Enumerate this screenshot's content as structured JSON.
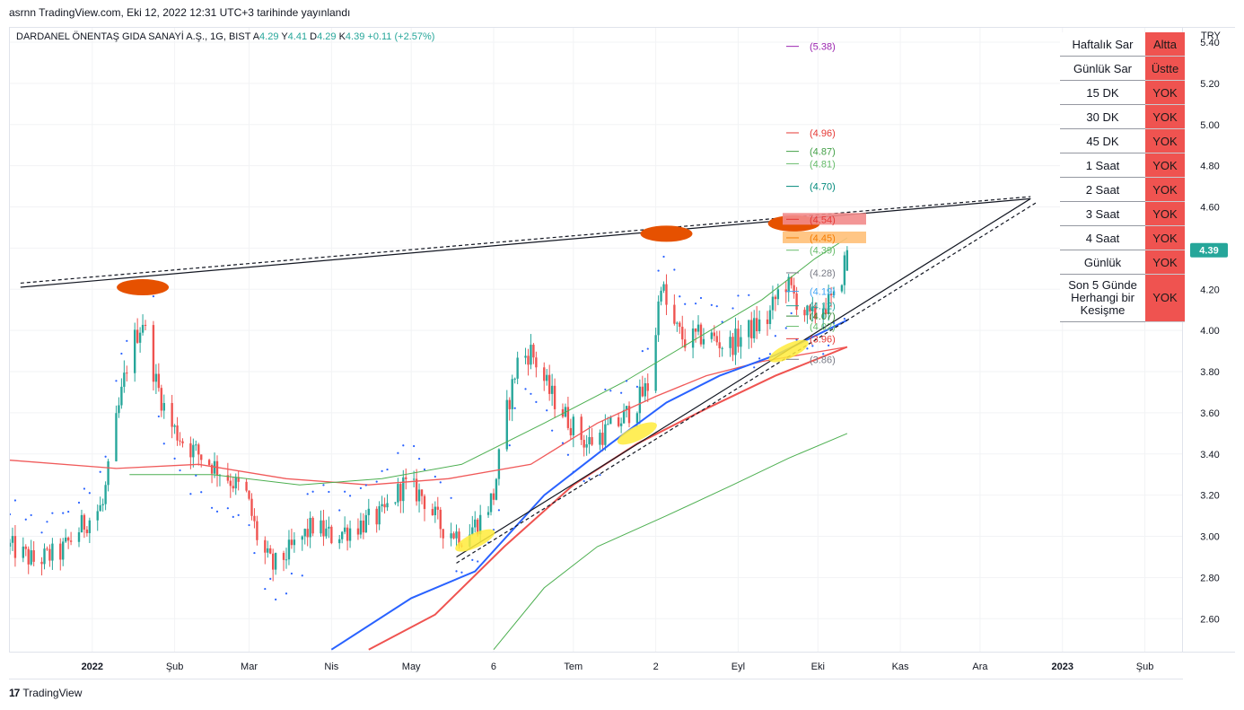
{
  "publish_line": "asrnn TradingView.com, Eki 12, 2022 12:31 UTC+3 tarihinde yayınlandı",
  "symbol": {
    "name": "DARDANEL ÖNENTAŞ GIDA SANAYİ A.Ş., 1G, BIST",
    "open_label": "A",
    "open": "4.29",
    "high_label": "Y",
    "high": "4.41",
    "low_label": "D",
    "low": "4.29",
    "close_label": "K",
    "close": "4.39",
    "change": "+0.11 (+2.57%)"
  },
  "currency": "TRY",
  "price_tag": "4.39",
  "footer": {
    "logo_mark": "17",
    "brand": "TradingView"
  },
  "status_table": [
    {
      "label": "Haftalık Sar",
      "status": "Altta"
    },
    {
      "label": "Günlük Sar",
      "status": "Üstte"
    },
    {
      "label": "15 DK",
      "status": "YOK"
    },
    {
      "label": "30 DK",
      "status": "YOK"
    },
    {
      "label": "45 DK",
      "status": "YOK"
    },
    {
      "label": "1 Saat",
      "status": "YOK"
    },
    {
      "label": "2 Saat",
      "status": "YOK"
    },
    {
      "label": "3 Saat",
      "status": "YOK"
    },
    {
      "label": "4 Saat",
      "status": "YOK"
    },
    {
      "label": "Günlük",
      "status": "YOK"
    },
    {
      "label": "Son 5 Günde Herhangi bir Kesişme",
      "status": "YOK"
    }
  ],
  "colors": {
    "up": "#26a69a",
    "down": "#ef5350",
    "ema_blue": "#2962ff",
    "ema_red": "#ef5350",
    "ma_green": "#4caf50",
    "ma_200": "#f05a5a",
    "sar": "#2962ff",
    "top_marker": "#e65100",
    "bottom_marker": "#ffeb3b",
    "table_status_bg": "#ef5350"
  },
  "chart_data": {
    "type": "candlestick",
    "ylim": [
      2.44,
      5.47
    ],
    "y_ticks": [
      "5.40",
      "5.20",
      "5.00",
      "4.80",
      "4.60",
      "4.40",
      "4.20",
      "4.00",
      "3.80",
      "3.60",
      "3.40",
      "3.20",
      "3.00",
      "2.80",
      "2.60"
    ],
    "x_ticks": [
      "2022",
      "Şub",
      "Mar",
      "Nis",
      "May",
      "6",
      "Tem",
      "2",
      "Eyl",
      "Eki",
      "Kas",
      "Ara",
      "2023",
      "Şub"
    ],
    "x_tick_dates": [
      "2022-01-01",
      "2022-02-01",
      "2022-03-01",
      "2022-04-01",
      "2022-05-01",
      "2022-06-01",
      "2022-07-01",
      "2022-08-01",
      "2022-09-01",
      "2022-10-01",
      "2022-11-01",
      "2022-12-01",
      "2023-01-01",
      "2023-02-01"
    ],
    "x_range": [
      "2021-12-01",
      "2023-02-15"
    ],
    "bold_x_ticks": [
      "2022",
      "2023"
    ],
    "last_date": "2022-10-12",
    "price_path": [
      [
        "2021-12-01",
        2.95
      ],
      [
        "2021-12-10",
        2.88
      ],
      [
        "2021-12-20",
        2.92
      ],
      [
        "2021-12-28",
        3.05
      ],
      [
        "2022-01-05",
        3.15
      ],
      [
        "2022-01-10",
        3.55
      ],
      [
        "2022-01-15",
        3.9
      ],
      [
        "2022-01-20",
        4.05
      ],
      [
        "2022-01-25",
        3.75
      ],
      [
        "2022-01-30",
        3.55
      ],
      [
        "2022-02-05",
        3.45
      ],
      [
        "2022-02-12",
        3.38
      ],
      [
        "2022-02-20",
        3.3
      ],
      [
        "2022-02-28",
        3.2
      ],
      [
        "2022-03-05",
        2.95
      ],
      [
        "2022-03-10",
        2.85
      ],
      [
        "2022-03-18",
        2.95
      ],
      [
        "2022-03-25",
        3.05
      ],
      [
        "2022-04-01",
        3.0
      ],
      [
        "2022-04-10",
        3.05
      ],
      [
        "2022-04-20",
        3.1
      ],
      [
        "2022-04-28",
        3.25
      ],
      [
        "2022-05-05",
        3.2
      ],
      [
        "2022-05-12",
        3.05
      ],
      [
        "2022-05-20",
        3.0
      ],
      [
        "2022-05-27",
        3.08
      ],
      [
        "2022-06-01",
        3.2
      ],
      [
        "2022-06-05",
        3.55
      ],
      [
        "2022-06-10",
        3.85
      ],
      [
        "2022-06-15",
        3.9
      ],
      [
        "2022-06-22",
        3.7
      ],
      [
        "2022-06-30",
        3.55
      ],
      [
        "2022-07-06",
        3.45
      ],
      [
        "2022-07-12",
        3.5
      ],
      [
        "2022-07-18",
        3.55
      ],
      [
        "2022-07-25",
        3.65
      ],
      [
        "2022-07-30",
        3.75
      ],
      [
        "2022-08-03",
        4.25
      ],
      [
        "2022-08-06",
        4.05
      ],
      [
        "2022-08-12",
        3.95
      ],
      [
        "2022-08-20",
        3.98
      ],
      [
        "2022-08-28",
        3.92
      ],
      [
        "2022-09-05",
        4.0
      ],
      [
        "2022-09-12",
        4.05
      ],
      [
        "2022-09-18",
        4.25
      ],
      [
        "2022-09-23",
        4.15
      ],
      [
        "2022-09-28",
        4.05
      ],
      [
        "2022-10-03",
        4.12
      ],
      [
        "2022-10-08",
        4.15
      ],
      [
        "2022-10-12",
        4.39
      ]
    ],
    "indicators": {
      "sma200": [
        [
          "2021-12-01",
          3.37
        ],
        [
          "2022-01-10",
          3.33
        ],
        [
          "2022-02-10",
          3.35
        ],
        [
          "2022-03-15",
          3.28
        ],
        [
          "2022-04-15",
          3.25
        ],
        [
          "2022-05-15",
          3.28
        ],
        [
          "2022-06-15",
          3.35
        ],
        [
          "2022-07-10",
          3.55
        ],
        [
          "2022-08-01",
          3.68
        ],
        [
          "2022-08-20",
          3.78
        ],
        [
          "2022-09-10",
          3.85
        ],
        [
          "2022-10-12",
          3.92
        ]
      ],
      "ema_blue": [
        [
          "2022-04-01",
          2.45
        ],
        [
          "2022-05-01",
          2.7
        ],
        [
          "2022-05-25",
          2.83
        ],
        [
          "2022-06-20",
          3.2
        ],
        [
          "2022-07-15",
          3.45
        ],
        [
          "2022-08-05",
          3.65
        ],
        [
          "2022-08-25",
          3.78
        ],
        [
          "2022-09-15",
          3.88
        ],
        [
          "2022-10-12",
          4.05
        ]
      ],
      "ema_red": [
        [
          "2022-04-15",
          2.45
        ],
        [
          "2022-05-10",
          2.62
        ],
        [
          "2022-06-05",
          2.95
        ],
        [
          "2022-07-01",
          3.25
        ],
        [
          "2022-07-25",
          3.45
        ],
        [
          "2022-08-20",
          3.62
        ],
        [
          "2022-09-15",
          3.78
        ],
        [
          "2022-10-12",
          3.92
        ]
      ],
      "sma_green_slow": [
        [
          "2022-06-01",
          2.45
        ],
        [
          "2022-06-20",
          2.75
        ],
        [
          "2022-07-10",
          2.95
        ],
        [
          "2022-08-05",
          3.1
        ],
        [
          "2022-08-30",
          3.25
        ],
        [
          "2022-09-20",
          3.38
        ],
        [
          "2022-10-12",
          3.5
        ]
      ],
      "sma_green_fast": [
        [
          "2022-01-15",
          3.3
        ],
        [
          "2022-02-15",
          3.3
        ],
        [
          "2022-03-20",
          3.25
        ],
        [
          "2022-04-20",
          3.28
        ],
        [
          "2022-05-20",
          3.35
        ],
        [
          "2022-06-20",
          3.55
        ],
        [
          "2022-07-20",
          3.75
        ],
        [
          "2022-08-15",
          3.95
        ],
        [
          "2022-09-10",
          4.15
        ],
        [
          "2022-09-30",
          4.35
        ],
        [
          "2022-10-12",
          4.45
        ]
      ]
    },
    "trendlines": [
      {
        "id": "upper-resistance",
        "from": [
          "2021-12-05",
          4.21
        ],
        "to": [
          "2022-12-20",
          4.64
        ],
        "style": "solid"
      },
      {
        "id": "upper-resistance-dashed",
        "from": [
          "2021-12-05",
          4.23
        ],
        "to": [
          "2022-12-20",
          4.65
        ],
        "style": "dashed"
      },
      {
        "id": "rising-support",
        "from": [
          "2022-05-18",
          2.9
        ],
        "to": [
          "2022-12-20",
          4.64
        ],
        "style": "solid"
      },
      {
        "id": "rising-support-dashed",
        "from": [
          "2022-05-18",
          2.87
        ],
        "to": [
          "2022-12-22",
          4.62
        ],
        "style": "dashed"
      }
    ],
    "top_markers": [
      [
        "2022-01-20",
        4.21
      ],
      [
        "2022-08-05",
        4.47
      ],
      [
        "2022-09-22",
        4.52
      ]
    ],
    "bottom_markers": [
      [
        "2022-05-25",
        2.98
      ],
      [
        "2022-07-25",
        3.5
      ],
      [
        "2022-09-20",
        3.9
      ]
    ],
    "level_labels": [
      {
        "text": "(5.38)",
        "price": 5.38,
        "color": "#9c27b0"
      },
      {
        "text": "(4.96)",
        "price": 4.96,
        "color": "#e53935"
      },
      {
        "text": "(4.87)",
        "price": 4.87,
        "color": "#43a047"
      },
      {
        "text": "(4.81)",
        "price": 4.81,
        "color": "#66bb6a"
      },
      {
        "text": "(4.70)",
        "price": 4.7,
        "color": "#00897b"
      },
      {
        "text": "(4.54)",
        "price": 4.54,
        "color": "#e53935",
        "box": "#f28b8b"
      },
      {
        "text": "(4.45)",
        "price": 4.45,
        "color": "#f57c00",
        "box": "#ffc078"
      },
      {
        "text": "(4.39)",
        "price": 4.39,
        "color": "#66bb6a"
      },
      {
        "text": "(4.28)",
        "price": 4.28,
        "color": "#787b86"
      },
      {
        "text": "(4.19)",
        "price": 4.19,
        "color": "#42a5f5"
      },
      {
        "text": "(4.12)",
        "price": 4.12,
        "color": "#26a69a"
      },
      {
        "text": "(4.07)",
        "price": 4.07,
        "color": "#388e3c"
      },
      {
        "text": "(4.02)",
        "price": 4.02,
        "color": "#66bb6a"
      },
      {
        "text": "(3.96)",
        "price": 3.96,
        "color": "#e53935"
      },
      {
        "text": "(3.86)",
        "price": 3.86,
        "color": "#787b86"
      }
    ]
  }
}
